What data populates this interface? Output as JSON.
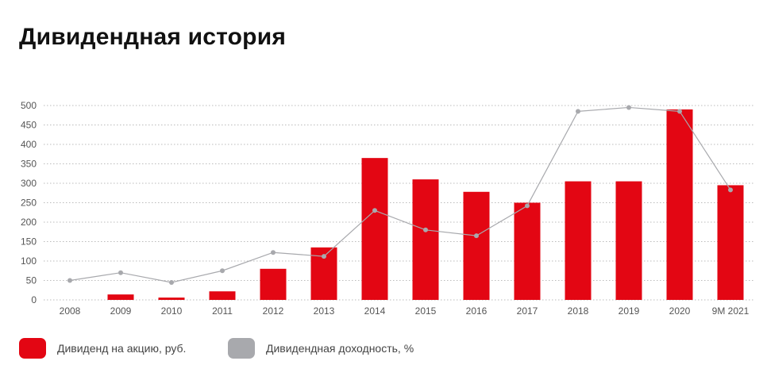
{
  "page": {
    "title": "Дивидендная история"
  },
  "chart_data": {
    "type": "bar",
    "categories": [
      "2008",
      "2009",
      "2010",
      "2011",
      "2012",
      "2013",
      "2014",
      "2015",
      "2016",
      "2017",
      "2018",
      "2019",
      "2020",
      "9M 2021"
    ],
    "series": [
      {
        "name": "Дивиденд на акцию, руб.",
        "type": "bar",
        "color": "#e30613",
        "values": [
          0,
          14,
          6,
          22,
          80,
          135,
          365,
          310,
          278,
          250,
          305,
          305,
          490,
          295
        ]
      },
      {
        "name": "Дивидендная доходность, %",
        "type": "line",
        "color": "#a8a9ad",
        "values": [
          50,
          70,
          45,
          75,
          122,
          112,
          230,
          180,
          165,
          242,
          485,
          495,
          485,
          283
        ]
      }
    ],
    "yticks": [
      0,
      50,
      100,
      150,
      200,
      250,
      300,
      350,
      400,
      450,
      500
    ],
    "ylim": [
      0,
      500
    ],
    "grid": "horizontal-dotted",
    "legend_position": "bottom-left"
  }
}
